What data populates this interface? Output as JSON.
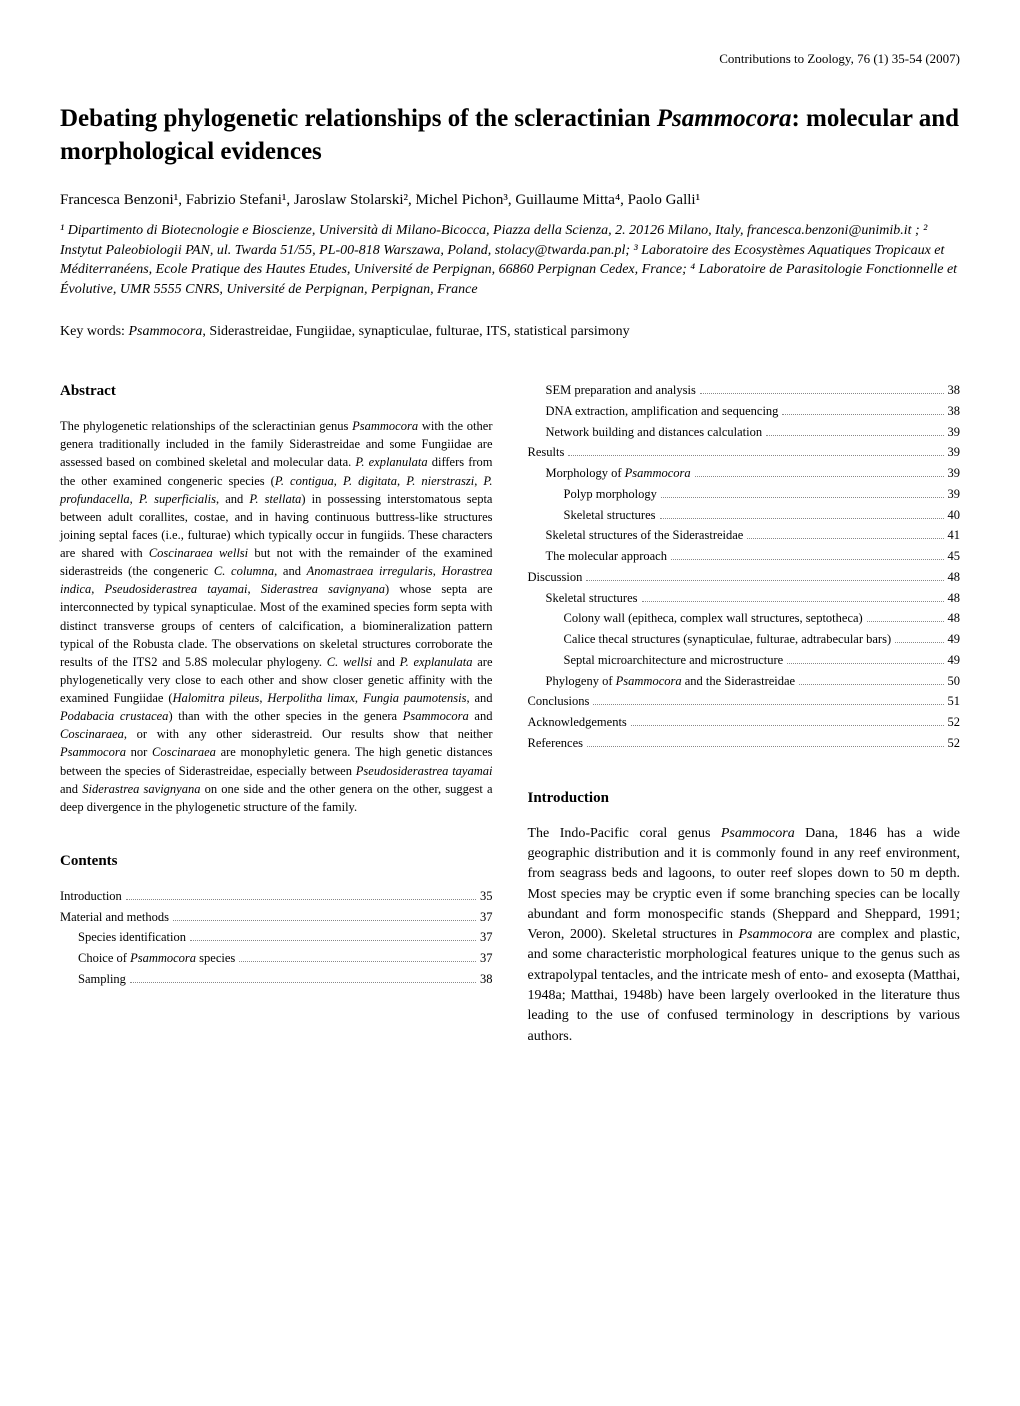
{
  "header": {
    "journal": "Contributions to Zoology, 76 (1) 35-54 (2007)"
  },
  "title": {
    "pre": "Debating phylogenetic relationships of the scleractinian ",
    "italic": "Psammocora",
    "post": ": molecular and morphological evidences"
  },
  "authors": "Francesca Benzoni¹, Fabrizio Stefani¹, Jaroslaw Stolarski², Michel Pichon³, Guillaume Mitta⁴, Paolo Galli¹",
  "affiliations": "¹ Dipartimento di Biotecnologie e Bioscienze, Università di Milano-Bicocca, Piazza della Scienza, 2. 20126 Milano, Italy, francesca.benzoni@unimib.it ; ² Instytut Paleobiologii PAN, ul. Twarda 51/55, PL-00-818 Warszawa, Poland, stolacy@twarda.pan.pl; ³ Laboratoire des Ecosystèmes Aquatiques Tropicaux et Méditerranéens, Ecole Pratique des Hautes Etudes, Université de Perpignan, 66860 Perpignan Cedex, France; ⁴ Laboratoire de Parasitologie Fonctionnelle et Évolutive, UMR 5555 CNRS, Université de Perpignan, Perpignan, France",
  "keywords": {
    "label": "Key words: ",
    "pre": "",
    "italic": "Psammocora",
    "post": ", Siderastreidae, Fungiidae, synapticulae, fulturae, ITS, statistical parsimony"
  },
  "abstract": {
    "heading": "Abstract"
  },
  "contents": {
    "heading": "Contents"
  },
  "toc_left": [
    {
      "label": "Introduction",
      "page": "35",
      "indent": 0
    },
    {
      "label": "Material and methods",
      "page": "37",
      "indent": 0
    },
    {
      "label": "Species identification",
      "page": "37",
      "indent": 1
    },
    {
      "label_pre": "Choice of ",
      "label_italic": "Psammocora",
      "label_post": " species",
      "page": "37",
      "indent": 1
    },
    {
      "label": "Sampling",
      "page": "38",
      "indent": 1
    }
  ],
  "toc_right": [
    {
      "label": "SEM preparation and analysis",
      "page": "38",
      "indent": 1
    },
    {
      "label": "DNA extraction, amplification and sequencing",
      "page": "38",
      "indent": 1
    },
    {
      "label": "Network building and distances calculation",
      "page": "39",
      "indent": 1
    },
    {
      "label": "Results",
      "page": "39",
      "indent": 0
    },
    {
      "label_pre": "Morphology of ",
      "label_italic": "Psammocora",
      "label_post": "",
      "page": "39",
      "indent": 1
    },
    {
      "label": "Polyp morphology",
      "page": "39",
      "indent": 2
    },
    {
      "label": "Skeletal structures",
      "page": "40",
      "indent": 2
    },
    {
      "label": "Skeletal structures of the Siderastreidae",
      "page": "41",
      "indent": 1
    },
    {
      "label": "The molecular approach",
      "page": "45",
      "indent": 1
    },
    {
      "label": "Discussion",
      "page": "48",
      "indent": 0
    },
    {
      "label": "Skeletal structures",
      "page": "48",
      "indent": 1
    },
    {
      "label": "Colony wall (epitheca, complex wall structures, septotheca)",
      "page": "48",
      "indent": 2
    },
    {
      "label": "Calice thecal structures (synapticulae, fulturae, adtrabecular bars)",
      "page": "49",
      "indent": 2
    },
    {
      "label": "Septal microarchitecture and microstructure",
      "page": "49",
      "indent": 2
    },
    {
      "label_pre": "Phylogeny of ",
      "label_italic": "Psammocora",
      "label_post": " and the Siderastreidae",
      "page": "50",
      "indent": 1
    },
    {
      "label": "Conclusions",
      "page": "51",
      "indent": 0
    },
    {
      "label": "Acknowledgements",
      "page": "52",
      "indent": 0
    },
    {
      "label": "References",
      "page": "52",
      "indent": 0
    }
  ],
  "introduction": {
    "heading": "Introduction"
  }
}
